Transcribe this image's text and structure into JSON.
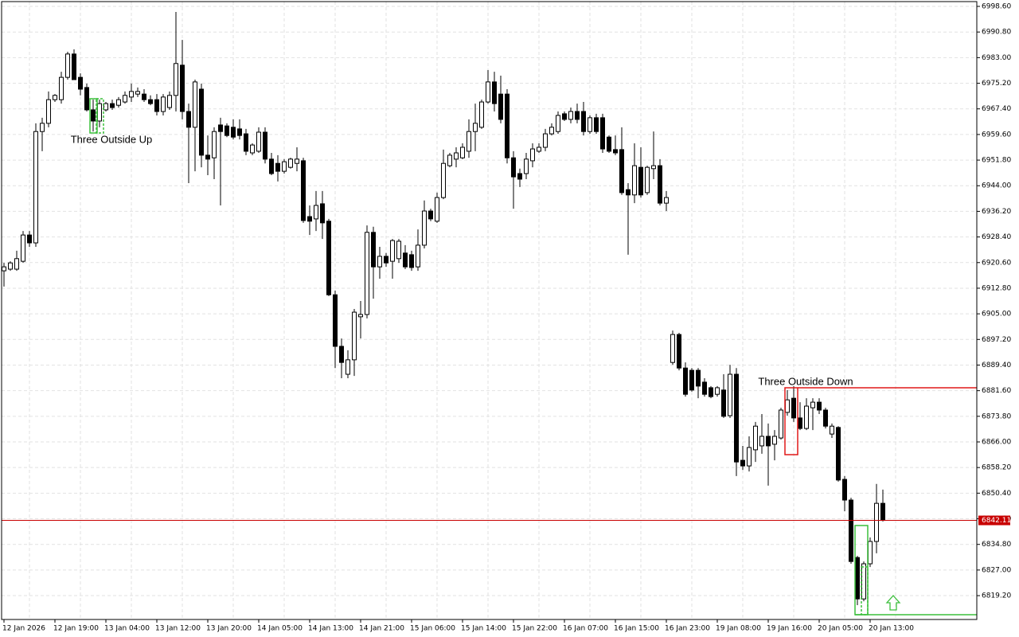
{
  "chart_data": {
    "type": "candlestick",
    "categories": [
      "12 Jan 2026",
      null,
      null,
      null,
      null,
      null,
      null,
      null,
      "12 Jan 19:00",
      null,
      null,
      null,
      null,
      null,
      null,
      null,
      "13 Jan 04:00",
      null,
      null,
      null,
      null,
      null,
      null,
      null,
      "13 Jan 12:00",
      null,
      null,
      null,
      null,
      null,
      null,
      null,
      "13 Jan 20:00",
      null,
      null,
      null,
      null,
      null,
      null,
      null,
      "14 Jan 05:00",
      null,
      null,
      null,
      null,
      null,
      null,
      null,
      "14 Jan 13:00",
      null,
      null,
      null,
      null,
      null,
      null,
      null,
      "14 Jan 21:00",
      null,
      null,
      null,
      null,
      null,
      null,
      null,
      "15 Jan 06:00",
      null,
      null,
      null,
      null,
      null,
      null,
      null,
      "15 Jan 14:00",
      null,
      null,
      null,
      null,
      null,
      null,
      null,
      "15 Jan 22:00",
      null,
      null,
      null,
      null,
      null,
      null,
      null,
      "16 Jan 07:00",
      null,
      null,
      null,
      null,
      null,
      null,
      null,
      "16 Jan 15:00",
      null,
      null,
      null,
      null,
      null,
      null,
      null,
      "16 Jan 23:00",
      null,
      null,
      null,
      null,
      null,
      null,
      null,
      "19 Jan 08:00",
      null,
      null,
      null,
      null,
      null,
      null,
      null,
      "19 Jan 16:00",
      null,
      null,
      null,
      null,
      null,
      null,
      null,
      "20 Jan 05:00",
      null,
      null,
      null,
      null,
      null,
      null,
      null,
      "20 Jan 13:00",
      null,
      null
    ],
    "open": [
      6918.1,
      6918.6,
      6918.6,
      6921.0,
      6929.0,
      6926.6,
      6960.5,
      6963.0,
      6970.2,
      6970.2,
      6977.0,
      6984.1,
      6977.0,
      6973.9,
      6967.1,
      6963.7,
      6967.1,
      6969.0,
      6968.5,
      6969.5,
      6971.0,
      6971.9,
      6971.9,
      6970.2,
      6970.2,
      6966.6,
      6967.8,
      6971.5,
      6980.7,
      6966.6,
      6961.8,
      6973.4,
      6953.3,
      6952.5,
      6962.5,
      6962.2,
      6961.8,
      6961.3,
      6959.8,
      6954.0,
      6954.5,
      6960.3,
      6952.1,
      6950.8,
      6948.4,
      6949.6,
      6950.8,
      6951.6,
      6934.6,
      6933.9,
      6938.5,
      6933.2,
      6910.8,
      6895.1,
      6886.6,
      6891.0,
      6904.1,
      6904.8,
      6929.8,
      6919.3,
      6922.5,
      6921.0,
      6921.8,
      6923.5,
      6923.0,
      6919.3,
      6925.9,
      6936.3,
      6933.2,
      6940.4,
      6950.1,
      6952.1,
      6952.5,
      6954.5,
      6960.5,
      6961.8,
      6969.5,
      6975.6,
      6971.9,
      6971.9,
      6952.5,
      6947.7,
      6947.7,
      6951.6,
      6954.5,
      6955.7,
      6959.8,
      6960.5,
      6965.9,
      6964.2,
      6966.6,
      6966.6,
      6960.5,
      6964.7,
      6964.7,
      6958.8,
      6955.0,
      6955.0,
      6942.8,
      6941.2,
      6949.6,
      6941.9,
      6949.2,
      6950.1,
      6938.7,
      6890.2,
      6898.7,
      6888.5,
      6887.8,
      6887.8,
      6884.2,
      6882.5,
      6880.5,
      6881.8,
      6874.0,
      6886.6,
      6860.4,
      6858.7,
      6863.6,
      6864.8,
      6867.7,
      6865.3,
      6867.2,
      6875.0,
      6879.3,
      6873.3,
      6870.1,
      6876.4,
      6878.1,
      6875.7,
      6868.4,
      6870.4,
      6854.6,
      6848.3,
      6830.8,
      6818.2,
      6828.9,
      6835.7,
      6847.3
    ],
    "high": [
      6920.5,
      6921.0,
      6924.2,
      6930.2,
      6930.2,
      6963.0,
      6964.7,
      6972.7,
      6971.9,
      6978.7,
      6984.8,
      6985.5,
      6978.2,
      6975.1,
      6970.2,
      6970.2,
      6969.5,
      6970.2,
      6971.0,
      6972.7,
      6975.1,
      6973.9,
      6973.4,
      6971.5,
      6971.9,
      6971.9,
      6972.7,
      6996.9,
      6988.4,
      6969.0,
      6976.3,
      6975.1,
      6959.3,
      6961.8,
      6964.7,
      6963.0,
      6964.2,
      6964.2,
      6961.3,
      6956.9,
      6961.8,
      6961.8,
      6954.0,
      6953.3,
      6952.1,
      6952.5,
      6955.7,
      6952.5,
      6938.0,
      6942.4,
      6942.4,
      6933.9,
      6912.1,
      6897.5,
      6893.9,
      6906.5,
      6908.9,
      6931.9,
      6931.5,
      6925.4,
      6923.5,
      6927.8,
      6927.8,
      6925.9,
      6924.2,
      6930.7,
      6939.5,
      6937.0,
      6941.9,
      6955.0,
      6954.0,
      6955.7,
      6956.9,
      6964.2,
      6969.0,
      6970.2,
      6979.2,
      6978.7,
      6977.5,
      6973.4,
      6954.5,
      6949.2,
      6954.0,
      6956.9,
      6956.9,
      6961.3,
      6963.0,
      6966.6,
      6966.6,
      6967.8,
      6969.0,
      6969.5,
      6965.4,
      6965.9,
      6965.9,
      6959.3,
      6959.3,
      6961.8,
      6944.8,
      6956.9,
      6955.7,
      6950.1,
      6960.5,
      6952.1,
      6942.4,
      6899.9,
      6899.2,
      6890.2,
      6888.5,
      6888.5,
      6885.4,
      6883.0,
      6883.0,
      6886.6,
      6889.5,
      6888.5,
      6864.8,
      6867.7,
      6872.1,
      6874.5,
      6871.6,
      6869.6,
      6876.4,
      6881.8,
      6883.0,
      6878.1,
      6879.3,
      6879.3,
      6879.3,
      6876.4,
      6871.6,
      6870.8,
      6855.6,
      6849.0,
      6831.3,
      6829.6,
      6836.9,
      6853.2,
      6851.5
    ],
    "low": [
      6913.3,
      6918.1,
      6918.1,
      6920.5,
      6925.4,
      6925.4,
      6954.5,
      6961.8,
      6969.5,
      6969.0,
      6976.3,
      6976.3,
      6971.5,
      6966.6,
      6960.5,
      6961.8,
      6966.6,
      6967.1,
      6967.8,
      6969.0,
      6969.5,
      6971.0,
      6969.5,
      6968.5,
      6965.4,
      6965.4,
      6967.1,
      6966.6,
      6964.2,
      6944.8,
      6948.4,
      6949.6,
      6947.2,
      6946.0,
      6938.0,
      6958.8,
      6958.1,
      6958.1,
      6953.3,
      6953.3,
      6954.0,
      6950.8,
      6947.2,
      6945.3,
      6947.7,
      6949.2,
      6948.4,
      6932.7,
      6929.0,
      6930.2,
      6927.8,
      6910.4,
      6888.5,
      6885.4,
      6885.4,
      6886.1,
      6897.5,
      6903.6,
      6909.6,
      6915.7,
      6919.3,
      6915.7,
      6920.5,
      6918.6,
      6918.1,
      6918.1,
      6924.9,
      6933.2,
      6932.7,
      6939.9,
      6949.6,
      6949.6,
      6952.1,
      6952.5,
      6954.5,
      6961.3,
      6969.0,
      6966.6,
      6963.0,
      6950.8,
      6937.0,
      6943.6,
      6946.0,
      6949.6,
      6954.0,
      6954.5,
      6959.3,
      6959.8,
      6963.7,
      6963.0,
      6963.0,
      6959.3,
      6959.8,
      6959.8,
      6954.0,
      6954.0,
      6953.3,
      6941.2,
      6923.0,
      6938.7,
      6940.4,
      6941.2,
      6946.0,
      6938.0,
      6936.3,
      6889.5,
      6887.8,
      6879.8,
      6881.3,
      6879.3,
      6879.8,
      6879.3,
      6879.8,
      6873.3,
      6873.3,
      6855.6,
      6857.5,
      6857.0,
      6859.9,
      6862.4,
      6852.7,
      6860.4,
      6866.7,
      6874.0,
      6872.1,
      6869.6,
      6869.6,
      6869.6,
      6874.5,
      6870.1,
      6867.2,
      6853.9,
      6844.9,
      6828.9,
      6816.3,
      6817.5,
      6827.9,
      6832.1,
      6841.8
    ],
    "close": [
      6919.3,
      6920.5,
      6921.8,
      6929.0,
      6926.6,
      6960.5,
      6963.0,
      6970.2,
      6971.5,
      6977.0,
      6984.1,
      6976.3,
      6973.4,
      6967.1,
      6963.7,
      6969.0,
      6969.0,
      6967.8,
      6970.2,
      6971.5,
      6972.7,
      6972.7,
      6970.2,
      6969.0,
      6966.6,
      6971.0,
      6971.5,
      6981.2,
      6966.6,
      6961.8,
      6975.6,
      6953.3,
      6952.1,
      6960.5,
      6960.5,
      6959.3,
      6958.8,
      6959.3,
      6954.5,
      6956.4,
      6960.3,
      6952.1,
      6947.7,
      6948.4,
      6951.3,
      6952.1,
      6952.1,
      6933.4,
      6933.2,
      6938.0,
      6932.7,
      6910.8,
      6895.1,
      6890.2,
      6891.0,
      6905.5,
      6904.8,
      6929.8,
      6919.3,
      6922.5,
      6920.5,
      6927.3,
      6927.1,
      6919.3,
      6919.1,
      6925.9,
      6936.3,
      6933.9,
      6940.4,
      6950.8,
      6953.3,
      6954.0,
      6955.7,
      6960.5,
      6963.0,
      6969.5,
      6975.6,
      6969.0,
      6964.2,
      6952.5,
      6946.7,
      6946.0,
      6952.1,
      6955.2,
      6955.7,
      6959.8,
      6961.8,
      6965.4,
      6964.2,
      6966.6,
      6964.2,
      6960.5,
      6964.7,
      6960.5,
      6955.2,
      6954.5,
      6954.0,
      6941.9,
      6941.2,
      6950.1,
      6941.2,
      6949.6,
      6950.1,
      6938.7,
      6940.4,
      6898.7,
      6888.5,
      6880.5,
      6881.8,
      6883.0,
      6880.5,
      6879.8,
      6882.5,
      6873.8,
      6886.6,
      6859.9,
      6858.7,
      6864.3,
      6870.8,
      6867.7,
      6864.8,
      6867.7,
      6875.7,
      6878.8,
      6873.3,
      6870.1,
      6876.9,
      6878.1,
      6875.7,
      6870.8,
      6870.8,
      6854.4,
      6848.3,
      6829.6,
      6818.2,
      6828.9,
      6835.7,
      6847.3,
      6842.1
    ],
    "ylim": [
      6811.94,
      7000.06
    ],
    "yticks": [
      {
        "value": 6998.6,
        "label": "6998.60"
      },
      {
        "value": 6990.8,
        "label": "6990.80"
      },
      {
        "value": 6983,
        "label": "6983.00"
      },
      {
        "value": 6975.2,
        "label": "6975.20"
      },
      {
        "value": 6967.4,
        "label": "6967.40"
      },
      {
        "value": 6959.6,
        "label": "6959.60"
      },
      {
        "value": 6951.8,
        "label": "6951.80"
      },
      {
        "value": 6944,
        "label": "6944.00"
      },
      {
        "value": 6936.2,
        "label": "6936.20"
      },
      {
        "value": 6928.4,
        "label": "6928.40"
      },
      {
        "value": 6920.6,
        "label": "6920.60"
      },
      {
        "value": 6912.8,
        "label": "6912.80"
      },
      {
        "value": 6905,
        "label": "6905.00"
      },
      {
        "value": 6897.2,
        "label": "6897.20"
      },
      {
        "value": 6889.4,
        "label": "6889.40"
      },
      {
        "value": 6881.6,
        "label": "6881.60"
      },
      {
        "value": 6873.8,
        "label": "6873.80"
      },
      {
        "value": 6866,
        "label": "6866.00"
      },
      {
        "value": 6858.2,
        "label": "6858.20"
      },
      {
        "value": 6850.4,
        "label": "6850.40"
      },
      {
        "value": 6842.6,
        "label": "6842.60"
      },
      {
        "value": 6834.8,
        "label": "6834.80"
      },
      {
        "value": 6827,
        "label": "6827.00"
      },
      {
        "value": 6819.2,
        "label": "6819.20"
      }
    ],
    "grid": true,
    "bull_color": "#ffffff",
    "bear_color": "#000000",
    "current_price": 6842.11,
    "current_price_color": "#c80000",
    "annotations": [
      {
        "text": "Three Outside Up",
        "color": "#3cbf3c"
      },
      {
        "text": "Three Outside Down",
        "color": "#e01818"
      }
    ]
  }
}
